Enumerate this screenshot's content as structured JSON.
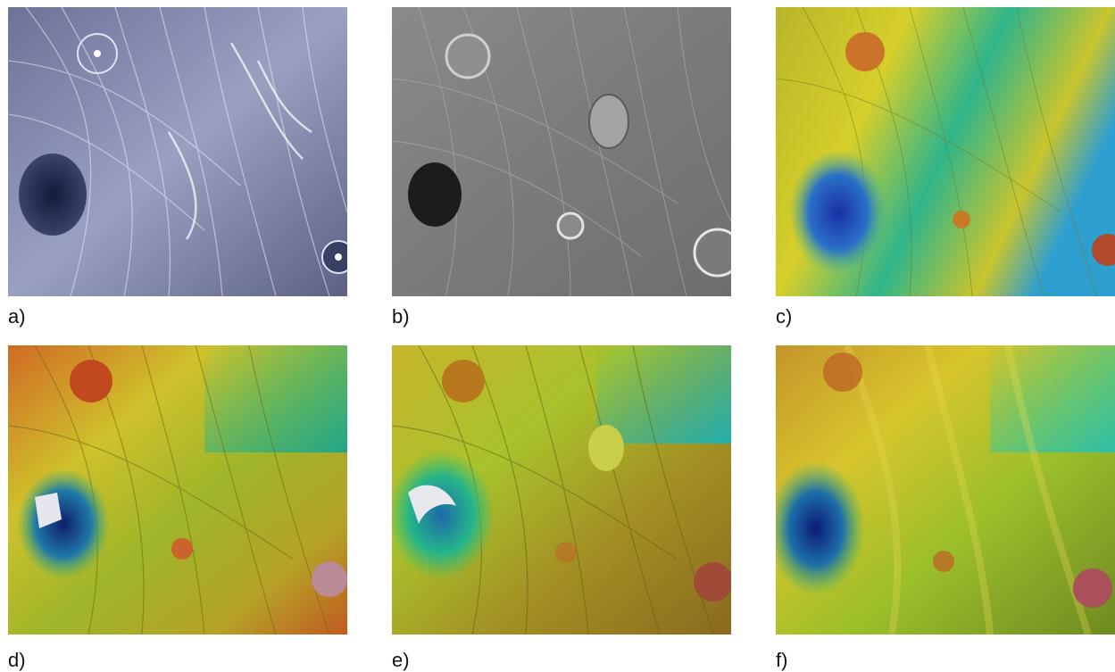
{
  "panels": [
    {
      "id": "a",
      "label": "a)",
      "style": "optical"
    },
    {
      "id": "b",
      "label": "b)",
      "style": "sem"
    },
    {
      "id": "c",
      "label": "c)",
      "style": "height-map"
    },
    {
      "id": "d",
      "label": "d)",
      "style": "height-map-3d"
    },
    {
      "id": "e",
      "label": "e)",
      "style": "height-map-3d"
    },
    {
      "id": "f",
      "label": "f)",
      "style": "height-map-smooth"
    }
  ],
  "colors": {
    "optical": "#7f84a6",
    "sem": "#7e7e7e",
    "map_low": "#1a2f9a",
    "map_mid": "#c9c62a",
    "map_high": "#c2561e"
  }
}
